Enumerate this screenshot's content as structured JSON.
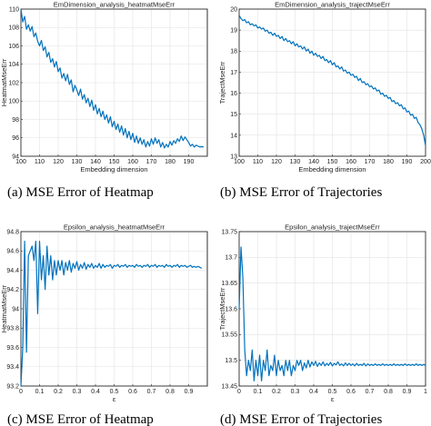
{
  "colors": {
    "line": "#0072bd",
    "grid": "#e2e2e2",
    "axis": "#262626"
  },
  "chart_data": [
    {
      "type": "line",
      "title": "EmDimension_analysis_heatmatMseErr",
      "caption": "(a) MSE Error of Heatmap",
      "xlabel": "Embedding dimension",
      "ylabel": "HeatmatMseErr",
      "xlim": [
        100,
        200
      ],
      "ylim": [
        94,
        110
      ],
      "xticks": [
        100,
        110,
        120,
        130,
        140,
        150,
        160,
        170,
        180,
        190
      ],
      "xtick_labels": [
        "100",
        "110",
        "120",
        "130",
        "140",
        "150",
        "160",
        "170",
        "180",
        "190"
      ],
      "yticks": [
        94,
        96,
        98,
        100,
        102,
        104,
        106,
        108,
        110
      ],
      "grid": true,
      "series": [
        {
          "x": [
            100,
            101,
            102,
            103,
            104,
            105,
            106,
            107,
            108,
            109,
            110,
            111,
            112,
            113,
            114,
            115,
            116,
            117,
            118,
            119,
            120,
            121,
            122,
            123,
            124,
            125,
            126,
            127,
            128,
            129,
            130,
            131,
            132,
            133,
            134,
            135,
            136,
            137,
            138,
            139,
            140,
            141,
            142,
            143,
            144,
            145,
            146,
            147,
            148,
            149,
            150,
            151,
            152,
            153,
            154,
            155,
            156,
            157,
            158,
            159,
            160,
            161,
            162,
            163,
            164,
            165,
            166,
            167,
            168,
            169,
            170,
            171,
            172,
            173,
            174,
            175,
            176,
            177,
            178,
            179,
            180,
            181,
            182,
            183,
            184,
            185,
            186,
            187,
            188,
            189,
            190,
            191,
            192,
            193,
            194,
            195,
            196,
            197,
            198
          ],
          "y": [
            110.0,
            108.6,
            109.2,
            107.8,
            108.3,
            107.6,
            108.1,
            107.0,
            107.4,
            106.5,
            106.0,
            106.6,
            105.5,
            105.9,
            104.8,
            105.3,
            104.2,
            104.6,
            103.7,
            104.3,
            103.2,
            103.6,
            102.5,
            103.0,
            102.2,
            102.9,
            101.8,
            102.3,
            101.0,
            101.7,
            101.2,
            100.6,
            101.3,
            100.2,
            100.7,
            99.8,
            100.3,
            99.4,
            100.1,
            99.0,
            99.6,
            98.6,
            99.2,
            98.3,
            98.9,
            98.0,
            98.5,
            97.6,
            98.3,
            97.2,
            97.8,
            96.9,
            97.5,
            96.6,
            97.3,
            96.3,
            97.0,
            96.0,
            96.7,
            95.8,
            96.5,
            95.5,
            96.2,
            95.4,
            96.0,
            95.3,
            95.8,
            95.0,
            95.6,
            95.1,
            95.9,
            95.3,
            96.0,
            95.4,
            95.8,
            95.0,
            95.5,
            94.9,
            95.3,
            95.0,
            95.6,
            95.2,
            95.7,
            95.4,
            95.9,
            95.6,
            96.2,
            95.7,
            96.1,
            95.8,
            95.5,
            95.1,
            95.3,
            95.0,
            95.2,
            95.1,
            95.0,
            95.05,
            95.0
          ]
        }
      ]
    },
    {
      "type": "line",
      "title": "EmDimension_analysis_trajectMseErr",
      "caption": "(b) MSE Error of Trajectories",
      "xlabel": "Embedding dimension",
      "ylabel": "TrajectMseErr",
      "xlim": [
        100,
        200
      ],
      "ylim": [
        13,
        20
      ],
      "xticks": [
        100,
        110,
        120,
        130,
        140,
        150,
        160,
        170,
        180,
        190,
        200
      ],
      "xtick_labels": [
        "100",
        "110",
        "120",
        "130",
        "140",
        "150",
        "160",
        "170",
        "180",
        "190",
        "200"
      ],
      "yticks": [
        13,
        14,
        15,
        16,
        17,
        18,
        19,
        20
      ],
      "grid": true,
      "series": [
        {
          "x": [
            100,
            101,
            102,
            103,
            104,
            105,
            106,
            107,
            108,
            109,
            110,
            111,
            112,
            113,
            114,
            115,
            116,
            117,
            118,
            119,
            120,
            121,
            122,
            123,
            124,
            125,
            126,
            127,
            128,
            129,
            130,
            131,
            132,
            133,
            134,
            135,
            136,
            137,
            138,
            139,
            140,
            141,
            142,
            143,
            144,
            145,
            146,
            147,
            148,
            149,
            150,
            151,
            152,
            153,
            154,
            155,
            156,
            157,
            158,
            159,
            160,
            161,
            162,
            163,
            164,
            165,
            166,
            167,
            168,
            169,
            170,
            171,
            172,
            173,
            174,
            175,
            176,
            177,
            178,
            179,
            180,
            181,
            182,
            183,
            184,
            185,
            186,
            187,
            188,
            189,
            190,
            191,
            192,
            193,
            194,
            195,
            196,
            197,
            198,
            199,
            200
          ],
          "y": [
            19.7,
            19.55,
            19.45,
            19.5,
            19.35,
            19.4,
            19.25,
            19.3,
            19.2,
            19.25,
            19.1,
            19.15,
            19.05,
            19.1,
            18.95,
            19.0,
            18.85,
            18.9,
            18.75,
            18.85,
            18.7,
            18.75,
            18.6,
            18.7,
            18.5,
            18.6,
            18.45,
            18.5,
            18.35,
            18.45,
            18.25,
            18.35,
            18.2,
            18.25,
            18.1,
            18.2,
            18.0,
            18.1,
            17.9,
            18.0,
            17.8,
            17.9,
            17.75,
            17.8,
            17.65,
            17.75,
            17.55,
            17.6,
            17.45,
            17.55,
            17.35,
            17.45,
            17.25,
            17.3,
            17.15,
            17.25,
            17.05,
            17.1,
            16.95,
            17.0,
            16.85,
            16.9,
            16.75,
            16.8,
            16.6,
            16.7,
            16.5,
            16.55,
            16.4,
            16.45,
            16.3,
            16.35,
            16.2,
            16.25,
            16.1,
            16.15,
            15.95,
            16.0,
            15.85,
            15.9,
            15.75,
            15.8,
            15.6,
            15.65,
            15.5,
            15.55,
            15.4,
            15.45,
            15.25,
            15.3,
            15.1,
            15.15,
            14.95,
            15.0,
            14.8,
            14.85,
            14.6,
            14.5,
            14.3,
            14.0,
            13.5
          ]
        }
      ]
    },
    {
      "type": "line",
      "title": "Epsilon_analysis_heatmatMseErr",
      "caption": "(c) MSE Error of Heatmap",
      "xlabel": "ε",
      "ylabel": "HeatmatMseErr",
      "xlim": [
        0,
        1
      ],
      "ylim": [
        93.2,
        94.8
      ],
      "xticks": [
        0,
        0.1,
        0.2,
        0.3,
        0.4,
        0.5,
        0.6,
        0.7,
        0.8,
        0.9
      ],
      "xtick_labels": [
        "0",
        "0.1",
        "0.2",
        "0.3",
        "0.4",
        "0.5",
        "0.6",
        "0.7",
        "0.8",
        "0.9"
      ],
      "yticks": [
        93.2,
        93.4,
        93.6,
        93.8,
        94.0,
        94.2,
        94.4,
        94.6,
        94.8
      ],
      "grid": true,
      "series": [
        {
          "x": [
            0.0,
            0.01,
            0.02,
            0.03,
            0.04,
            0.05,
            0.06,
            0.07,
            0.08,
            0.09,
            0.1,
            0.11,
            0.12,
            0.13,
            0.14,
            0.15,
            0.16,
            0.17,
            0.18,
            0.19,
            0.2,
            0.21,
            0.22,
            0.23,
            0.24,
            0.25,
            0.26,
            0.27,
            0.28,
            0.29,
            0.3,
            0.31,
            0.32,
            0.33,
            0.34,
            0.35,
            0.36,
            0.37,
            0.38,
            0.39,
            0.4,
            0.41,
            0.42,
            0.43,
            0.44,
            0.45,
            0.46,
            0.47,
            0.48,
            0.49,
            0.5,
            0.51,
            0.52,
            0.53,
            0.54,
            0.55,
            0.56,
            0.57,
            0.58,
            0.59,
            0.6,
            0.61,
            0.62,
            0.63,
            0.64,
            0.65,
            0.66,
            0.67,
            0.68,
            0.69,
            0.7,
            0.71,
            0.72,
            0.73,
            0.74,
            0.75,
            0.76,
            0.77,
            0.78,
            0.79,
            0.8,
            0.81,
            0.82,
            0.83,
            0.84,
            0.85,
            0.86,
            0.87,
            0.88,
            0.89,
            0.9,
            0.91,
            0.92,
            0.93,
            0.94,
            0.95,
            0.96,
            0.97
          ],
          "y": [
            93.2,
            93.6,
            94.7,
            93.55,
            94.55,
            94.6,
            94.65,
            94.5,
            94.7,
            93.95,
            94.7,
            94.3,
            94.55,
            94.2,
            94.65,
            94.35,
            94.55,
            94.3,
            94.5,
            94.35,
            94.5,
            94.4,
            94.5,
            94.35,
            94.48,
            94.4,
            94.5,
            94.38,
            94.47,
            94.42,
            94.49,
            94.4,
            94.46,
            94.42,
            94.48,
            94.41,
            94.46,
            94.43,
            94.47,
            94.42,
            94.45,
            94.43,
            94.47,
            94.42,
            94.46,
            94.43,
            94.45,
            94.44,
            94.46,
            94.42,
            94.45,
            94.44,
            94.46,
            94.43,
            94.45,
            94.44,
            94.46,
            94.43,
            94.45,
            94.44,
            94.45,
            94.43,
            94.46,
            94.44,
            94.45,
            94.43,
            94.45,
            94.44,
            94.46,
            94.43,
            94.45,
            94.44,
            94.46,
            94.43,
            94.45,
            94.44,
            94.45,
            94.43,
            94.46,
            94.44,
            94.45,
            94.43,
            94.45,
            94.44,
            94.46,
            94.43,
            94.45,
            94.44,
            94.45,
            94.43,
            94.44,
            94.45,
            94.43,
            94.44,
            94.43,
            94.44,
            94.43,
            94.42
          ]
        }
      ]
    },
    {
      "type": "line",
      "title": "Epsilon_analysis_trajectMseErr",
      "caption": "(d) MSE Error of Trajectories",
      "xlabel": "ε",
      "ylabel": "TrajectMseErr",
      "xlim": [
        0,
        1
      ],
      "ylim": [
        13.45,
        13.75
      ],
      "xticks": [
        0,
        0.1,
        0.2,
        0.3,
        0.4,
        0.5,
        0.6,
        0.7,
        0.8,
        0.9,
        1
      ],
      "xtick_labels": [
        "0",
        "0.1",
        "0.2",
        "0.3",
        "0.4",
        "0.5",
        "0.6",
        "0.7",
        "0.8",
        "0.9",
        "1"
      ],
      "yticks": [
        13.45,
        13.5,
        13.55,
        13.6,
        13.65,
        13.7,
        13.75
      ],
      "grid": true,
      "series": [
        {
          "x": [
            0.0,
            0.01,
            0.02,
            0.03,
            0.04,
            0.05,
            0.06,
            0.07,
            0.08,
            0.09,
            0.1,
            0.11,
            0.12,
            0.13,
            0.14,
            0.15,
            0.16,
            0.17,
            0.18,
            0.19,
            0.2,
            0.21,
            0.22,
            0.23,
            0.24,
            0.25,
            0.26,
            0.27,
            0.28,
            0.29,
            0.3,
            0.31,
            0.32,
            0.33,
            0.34,
            0.35,
            0.36,
            0.37,
            0.38,
            0.39,
            0.4,
            0.41,
            0.42,
            0.43,
            0.44,
            0.45,
            0.46,
            0.47,
            0.48,
            0.49,
            0.5,
            0.51,
            0.52,
            0.53,
            0.54,
            0.55,
            0.56,
            0.57,
            0.58,
            0.59,
            0.6,
            0.61,
            0.62,
            0.63,
            0.64,
            0.65,
            0.66,
            0.67,
            0.68,
            0.69,
            0.7,
            0.71,
            0.72,
            0.73,
            0.74,
            0.75,
            0.76,
            0.77,
            0.78,
            0.79,
            0.8,
            0.81,
            0.82,
            0.83,
            0.84,
            0.85,
            0.86,
            0.87,
            0.88,
            0.89,
            0.9,
            0.91,
            0.92,
            0.93,
            0.94,
            0.95,
            0.96,
            0.97,
            0.98,
            0.99,
            1.0
          ],
          "y": [
            13.6,
            13.72,
            13.66,
            13.52,
            13.47,
            13.5,
            13.48,
            13.52,
            13.46,
            13.5,
            13.47,
            13.51,
            13.46,
            13.5,
            13.48,
            13.52,
            13.47,
            13.49,
            13.48,
            13.51,
            13.47,
            13.5,
            13.48,
            13.49,
            13.47,
            13.5,
            13.48,
            13.5,
            13.47,
            13.49,
            13.48,
            13.5,
            13.49,
            13.5,
            13.48,
            13.495,
            13.485,
            13.5,
            13.487,
            13.497,
            13.49,
            13.498,
            13.488,
            13.495,
            13.49,
            13.497,
            13.489,
            13.494,
            13.49,
            13.496,
            13.489,
            13.494,
            13.491,
            13.497,
            13.49,
            13.493,
            13.489,
            13.495,
            13.49,
            13.494,
            13.49,
            13.493,
            13.489,
            13.494,
            13.49,
            13.492,
            13.49,
            13.494,
            13.489,
            13.493,
            13.49,
            13.492,
            13.49,
            13.493,
            13.49,
            13.492,
            13.49,
            13.493,
            13.49,
            13.492,
            13.49,
            13.492,
            13.49,
            13.493,
            13.49,
            13.492,
            13.49,
            13.492,
            13.49,
            13.493,
            13.49,
            13.492,
            13.49,
            13.492,
            13.49,
            13.493,
            13.49,
            13.492,
            13.49,
            13.492,
            13.49
          ]
        }
      ]
    }
  ]
}
